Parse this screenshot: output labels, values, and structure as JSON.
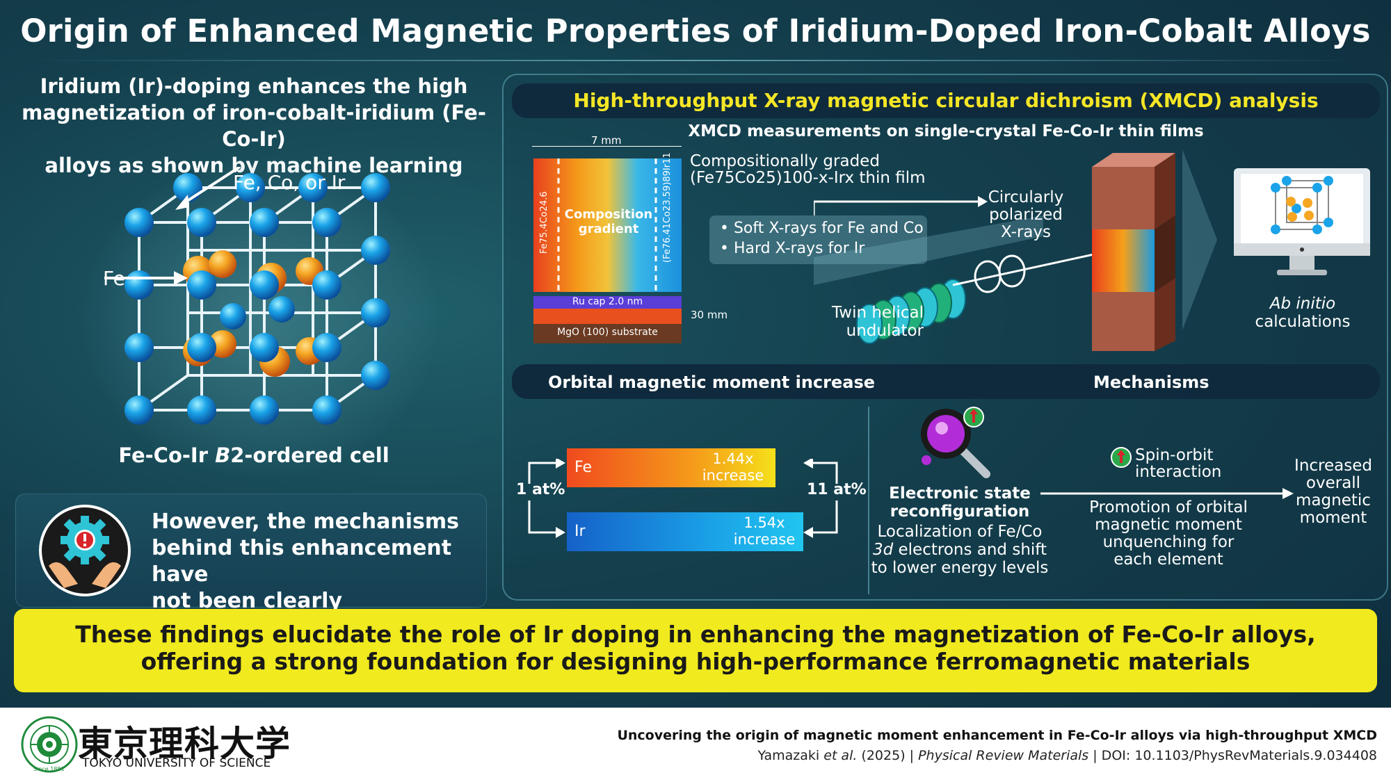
{
  "title": "Origin of Enhanced Magnetic Properties of Iridium-Doped Iron-Cobalt Alloys",
  "left": {
    "heading_lines": [
      "Iridium (Ir)-doping enhances the high",
      "magnetization of iron-cobalt-iridium (Fe-Co-Ir)",
      "alloys as shown by machine learning"
    ],
    "label_sites": "Fe, Co, or Ir",
    "label_fe": "Fe",
    "cell_caption_pre": "Fe-Co-Ir ",
    "cell_caption_italic": "B",
    "cell_caption_post": "2-ordered cell",
    "warning_lines": [
      "However, the mechanisms",
      "behind this enhancement have",
      "not been clearly understood"
    ]
  },
  "xmcd": {
    "title": "High-throughput X-ray magnetic circular dichroism (XMCD) analysis",
    "subtitle": "XMCD measurements on single-crystal Fe-Co-Ir thin films",
    "width_label": "7 mm",
    "left_comp": "Fe75.4Co24.6",
    "right_comp": "(Fe76.41Co23.59)89Ir11",
    "gradient_label_1": "Composition",
    "gradient_label_2": "gradient",
    "ru_cap": "Ru cap 2.0 nm",
    "substrate": "MgO (100) substrate",
    "thickness": "30 mm",
    "film_label_1": "Compositionally graded",
    "film_label_2": "(Fe75Co25)100-x-Irx thin film",
    "bullet_1": "• Soft X-rays for Fe and Co",
    "bullet_2": "• Hard X-rays for Ir",
    "polarized_lines": [
      "Circularly",
      "polarized",
      "X-rays"
    ],
    "undulator_lines": [
      "Twin helical",
      "undulator"
    ],
    "abinitio_italic": "Ab initio",
    "abinitio_rest": " calculations"
  },
  "orbital": {
    "title": "Orbital magnetic moment increase",
    "fe_label": "Fe",
    "fe_value_1": "1.44x",
    "fe_value_2": "increase",
    "ir_label": "Ir",
    "ir_value_1": "1.54x",
    "ir_value_2": "increase",
    "left_conc": "1 at%",
    "right_conc": "11 at%"
  },
  "mechanisms": {
    "title": "Mechanisms",
    "electronic_1": "Electronic state",
    "electronic_2": "reconfiguration",
    "local_1": "Localization of Fe/Co",
    "local_2_italic": "3d",
    "local_2_rest": " electrons and shift",
    "local_3": "to lower energy levels",
    "spin_1": "Spin-orbit",
    "spin_2": "interaction",
    "promo_lines": [
      "Promotion of orbital",
      "magnetic moment",
      "unquenching for",
      "each element"
    ],
    "increased_lines": [
      "Increased",
      "overall",
      "magnetic",
      "moment"
    ]
  },
  "banner_lines": [
    "These findings elucidate the role of Ir doping in enhancing the magnetization of Fe-Co-Ir alloys,",
    "offering a strong foundation for designing high-performance ferromagnetic materials"
  ],
  "footer": {
    "university_jp": "東京理科大学",
    "university_en": "TOKYO UNIVERSITY OF SCIENCE",
    "logo_since": "Since 1881",
    "paper_title": "Uncovering the origin of magnetic moment enhancement in Fe-Co-Ir alloys via high-throughput XMCD",
    "ref_authors": "Yamazaki ",
    "ref_etal": "et al.",
    "ref_year": " (2025)  |  ",
    "ref_journal": "Physical Review Materials",
    "ref_doi": "  |  DOI: 10.1103/PhysRevMaterials.9.034408"
  },
  "colors": {
    "accent_yellow": "#f5e626",
    "banner_yellow": "#f0ea1e",
    "fe_atom": "#f5a623",
    "co_atom": "#1aa3e8",
    "panel_dark": "#0f2a3c"
  }
}
